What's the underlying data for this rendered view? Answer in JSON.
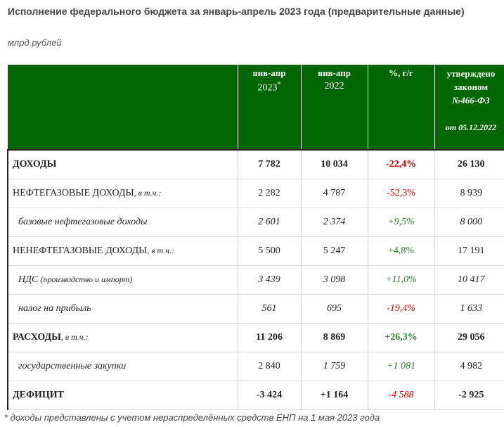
{
  "title": "Исполнение федерального бюджета за январь-апрель 2023 года (предварительные данные)",
  "units": "млрд рублей",
  "header": {
    "col1_line1": "янв-апр",
    "col1_line2": "2023",
    "col1_mark": "*",
    "col2_line1": "янв-апр",
    "col2_line2": "2022",
    "col3": "%, г/г",
    "col4_line1": "утверждено",
    "col4_line2": "законом",
    "col4_line3": "№466-ФЗ",
    "col4_line4": "от 05.12.2022"
  },
  "rows": [
    {
      "name": "ДОХОДЫ",
      "suffix": "",
      "v2023": "7 782",
      "v2022": "10 034",
      "pct": "-22,4%",
      "law": "26 130"
    },
    {
      "name": "НЕФТЕГАЗОВЫЕ ДОХОДЫ",
      "suffix": ", в т.ч.:",
      "v2023": "2 282",
      "v2022": "4 787",
      "pct": "-52,3%",
      "law": "8 939"
    },
    {
      "name": "базовые нефтегазовые доходы",
      "suffix": "",
      "v2023": "2 601",
      "v2022": "2 374",
      "pct": "+9,5%",
      "law": "8 000"
    },
    {
      "name": "НЕНЕФТЕГАЗОВЫЕ ДОХОДЫ",
      "suffix": ", в т.ч.:",
      "v2023": "5 500",
      "v2022": "5 247",
      "pct": "+4,8%",
      "law": "17 191"
    },
    {
      "name": "НДС",
      "suffix": " (производство и импорт)",
      "v2023": "3 439",
      "v2022": "3 098",
      "pct": "+11,0%",
      "law": "10 417"
    },
    {
      "name": "налог на прибыль",
      "suffix": "",
      "v2023": "561",
      "v2022": "695",
      "pct": "-19,4%",
      "law": "1 633"
    },
    {
      "name": "РАСХОДЫ",
      "suffix": ", в т.ч.:",
      "v2023": "11 206",
      "v2022": "8 869",
      "pct": "+26,3%",
      "law": "29 056"
    },
    {
      "name": "государственные закупки",
      "suffix": "",
      "v2023": "2 840",
      "v2022": "1 759",
      "pct": "+1 081",
      "law": "4 982"
    },
    {
      "name": "ДЕФИЦИТ",
      "suffix": "",
      "v2023": "-3 424",
      "v2022": "+1 164",
      "pct": "-4 588",
      "law": "-2 925"
    }
  ],
  "footnote": "* доходы представлены с учетом нераспределённых средств ЕНП на 1 мая 2023 года",
  "colors": {
    "header_bg": "#006600",
    "negative": "#cc0000",
    "positive": "#2e7d32"
  }
}
